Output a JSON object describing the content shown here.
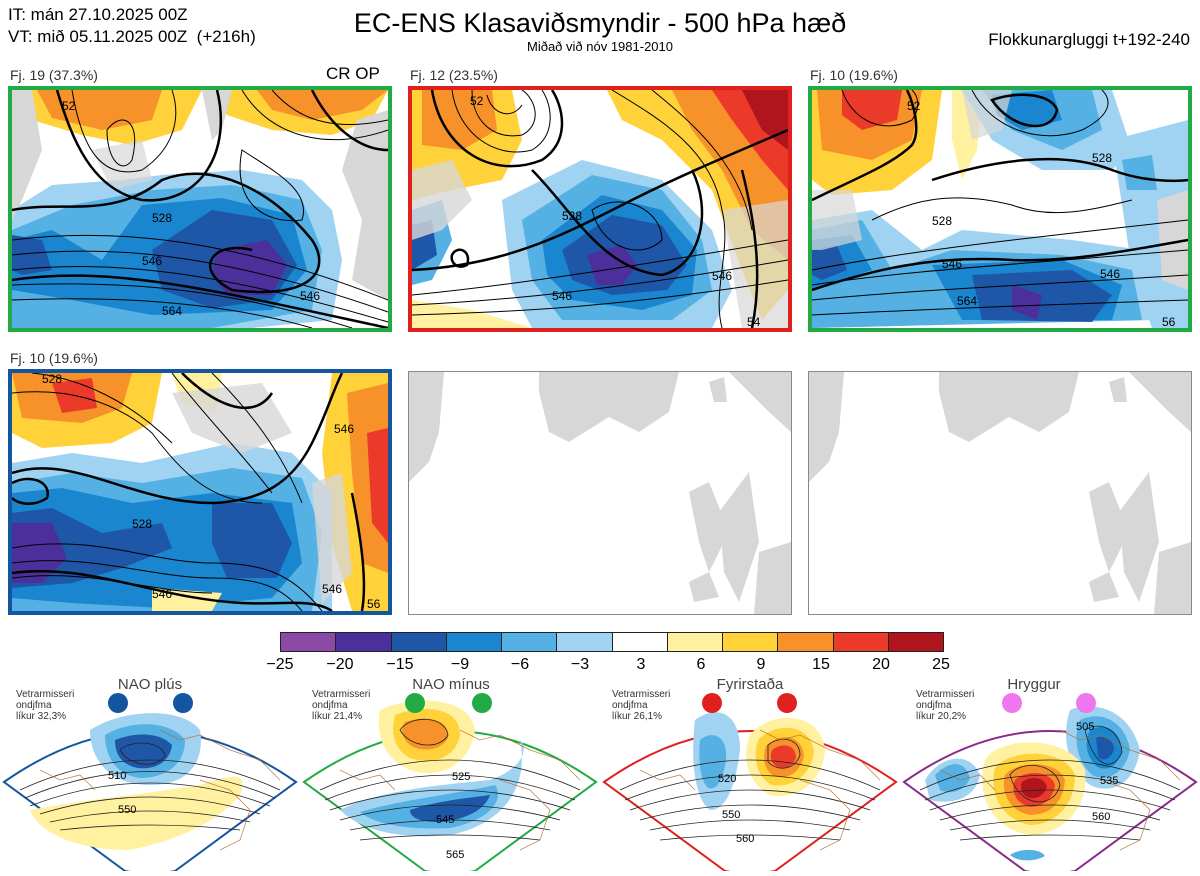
{
  "header": {
    "it_line": "IT: mán 27.10.2025 00Z",
    "vt_line": "VT: mið 05.11.2025 00Z  (+216h)",
    "title": "EC-ENS Klasaviðsmyndir - 500 hPa hæð",
    "subtitle": "Miðað við nóv 1981-2010",
    "window": "Flokkunargluggi t+192-240"
  },
  "panels": [
    {
      "label": "Fj. 19 (37.3%)",
      "extra_label": "CR OP",
      "frame_color": "#22aa44",
      "contours": [
        "528",
        "546",
        "564",
        "52"
      ]
    },
    {
      "label": "Fj. 12 (23.5%)",
      "extra_label": "",
      "frame_color": "#e0201c",
      "contours": [
        "528",
        "546",
        "52",
        "546",
        "54"
      ]
    },
    {
      "label": "Fj. 10 (19.6%)",
      "extra_label": "",
      "frame_color": "#22aa44",
      "contours": [
        "528",
        "528",
        "546",
        "564",
        "546",
        "52",
        "56"
      ]
    },
    {
      "label": "Fj. 10 (19.6%)",
      "extra_label": "",
      "frame_color": "#1455a0",
      "contours": [
        "528",
        "528",
        "546",
        "546",
        "56",
        "546"
      ]
    }
  ],
  "colorbar": {
    "ticks": [
      "−25",
      "−20",
      "−15",
      "−9",
      "−6",
      "−3",
      "3",
      "6",
      "9",
      "15",
      "20",
      "25"
    ],
    "colors": [
      "#8b4aa5",
      "#4b2f9a",
      "#1f57a8",
      "#1a86cf",
      "#55b0e3",
      "#9fd3f1",
      "#ffffff",
      "#fff1a0",
      "#ffd23a",
      "#f7922a",
      "#ec3a2a",
      "#b0141c"
    ]
  },
  "regimes": [
    {
      "title": "NAO plús",
      "text": [
        "Vetrarmisseri",
        "ondjfma",
        "líkur 32,3%"
      ],
      "dot_color": "#1455a0",
      "frame_color": "#1455a0",
      "contours": [
        "510",
        "550"
      ]
    },
    {
      "title": "NAO mínus",
      "text": [
        "Vetrarmisseri",
        "ondjfma",
        "líkur 21,4%"
      ],
      "dot_color": "#22aa44",
      "frame_color": "#22aa44",
      "contours": [
        "525",
        "545",
        "565"
      ]
    },
    {
      "title": "Fyrirstaða",
      "text": [
        "Vetrarmisseri",
        "ondjfma",
        "líkur 26,1%"
      ],
      "dot_color": "#e0201c",
      "frame_color": "#e0201c",
      "contours": [
        "520",
        "550",
        "560"
      ]
    },
    {
      "title": "Hryggur",
      "text": [
        "Vetrarmisseri",
        "ondjfma",
        "líkur 20,2%"
      ],
      "dot_color": "#ee77ee",
      "frame_color": "#8a2a8a",
      "contours": [
        "505",
        "535",
        "560"
      ]
    }
  ]
}
